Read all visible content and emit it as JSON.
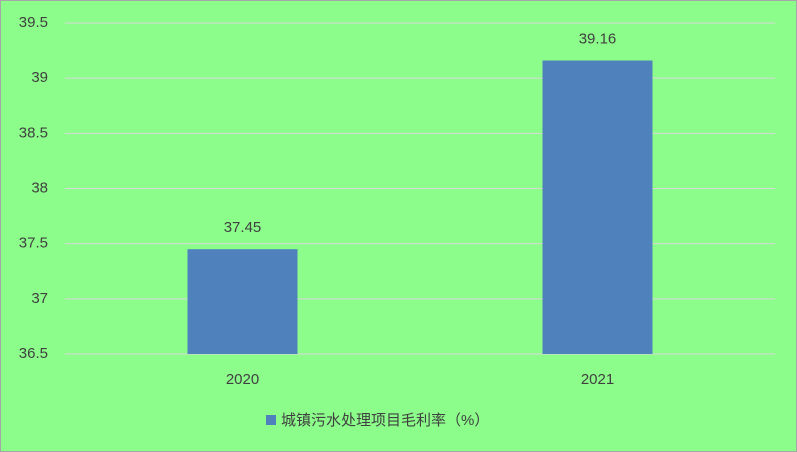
{
  "chart_data": {
    "type": "bar",
    "categories": [
      "2020",
      "2021"
    ],
    "series": [
      {
        "name": "城镇污水处理项目毛利率（%）",
        "color": "#4f81bd",
        "values": [
          37.45,
          39.16
        ]
      }
    ],
    "ylim": [
      36.5,
      39.5
    ],
    "yticks": [
      36.5,
      37,
      37.5,
      38,
      38.5,
      39,
      39.5
    ],
    "grid": true,
    "legend": "bottom",
    "background": "#8cfc8a"
  }
}
